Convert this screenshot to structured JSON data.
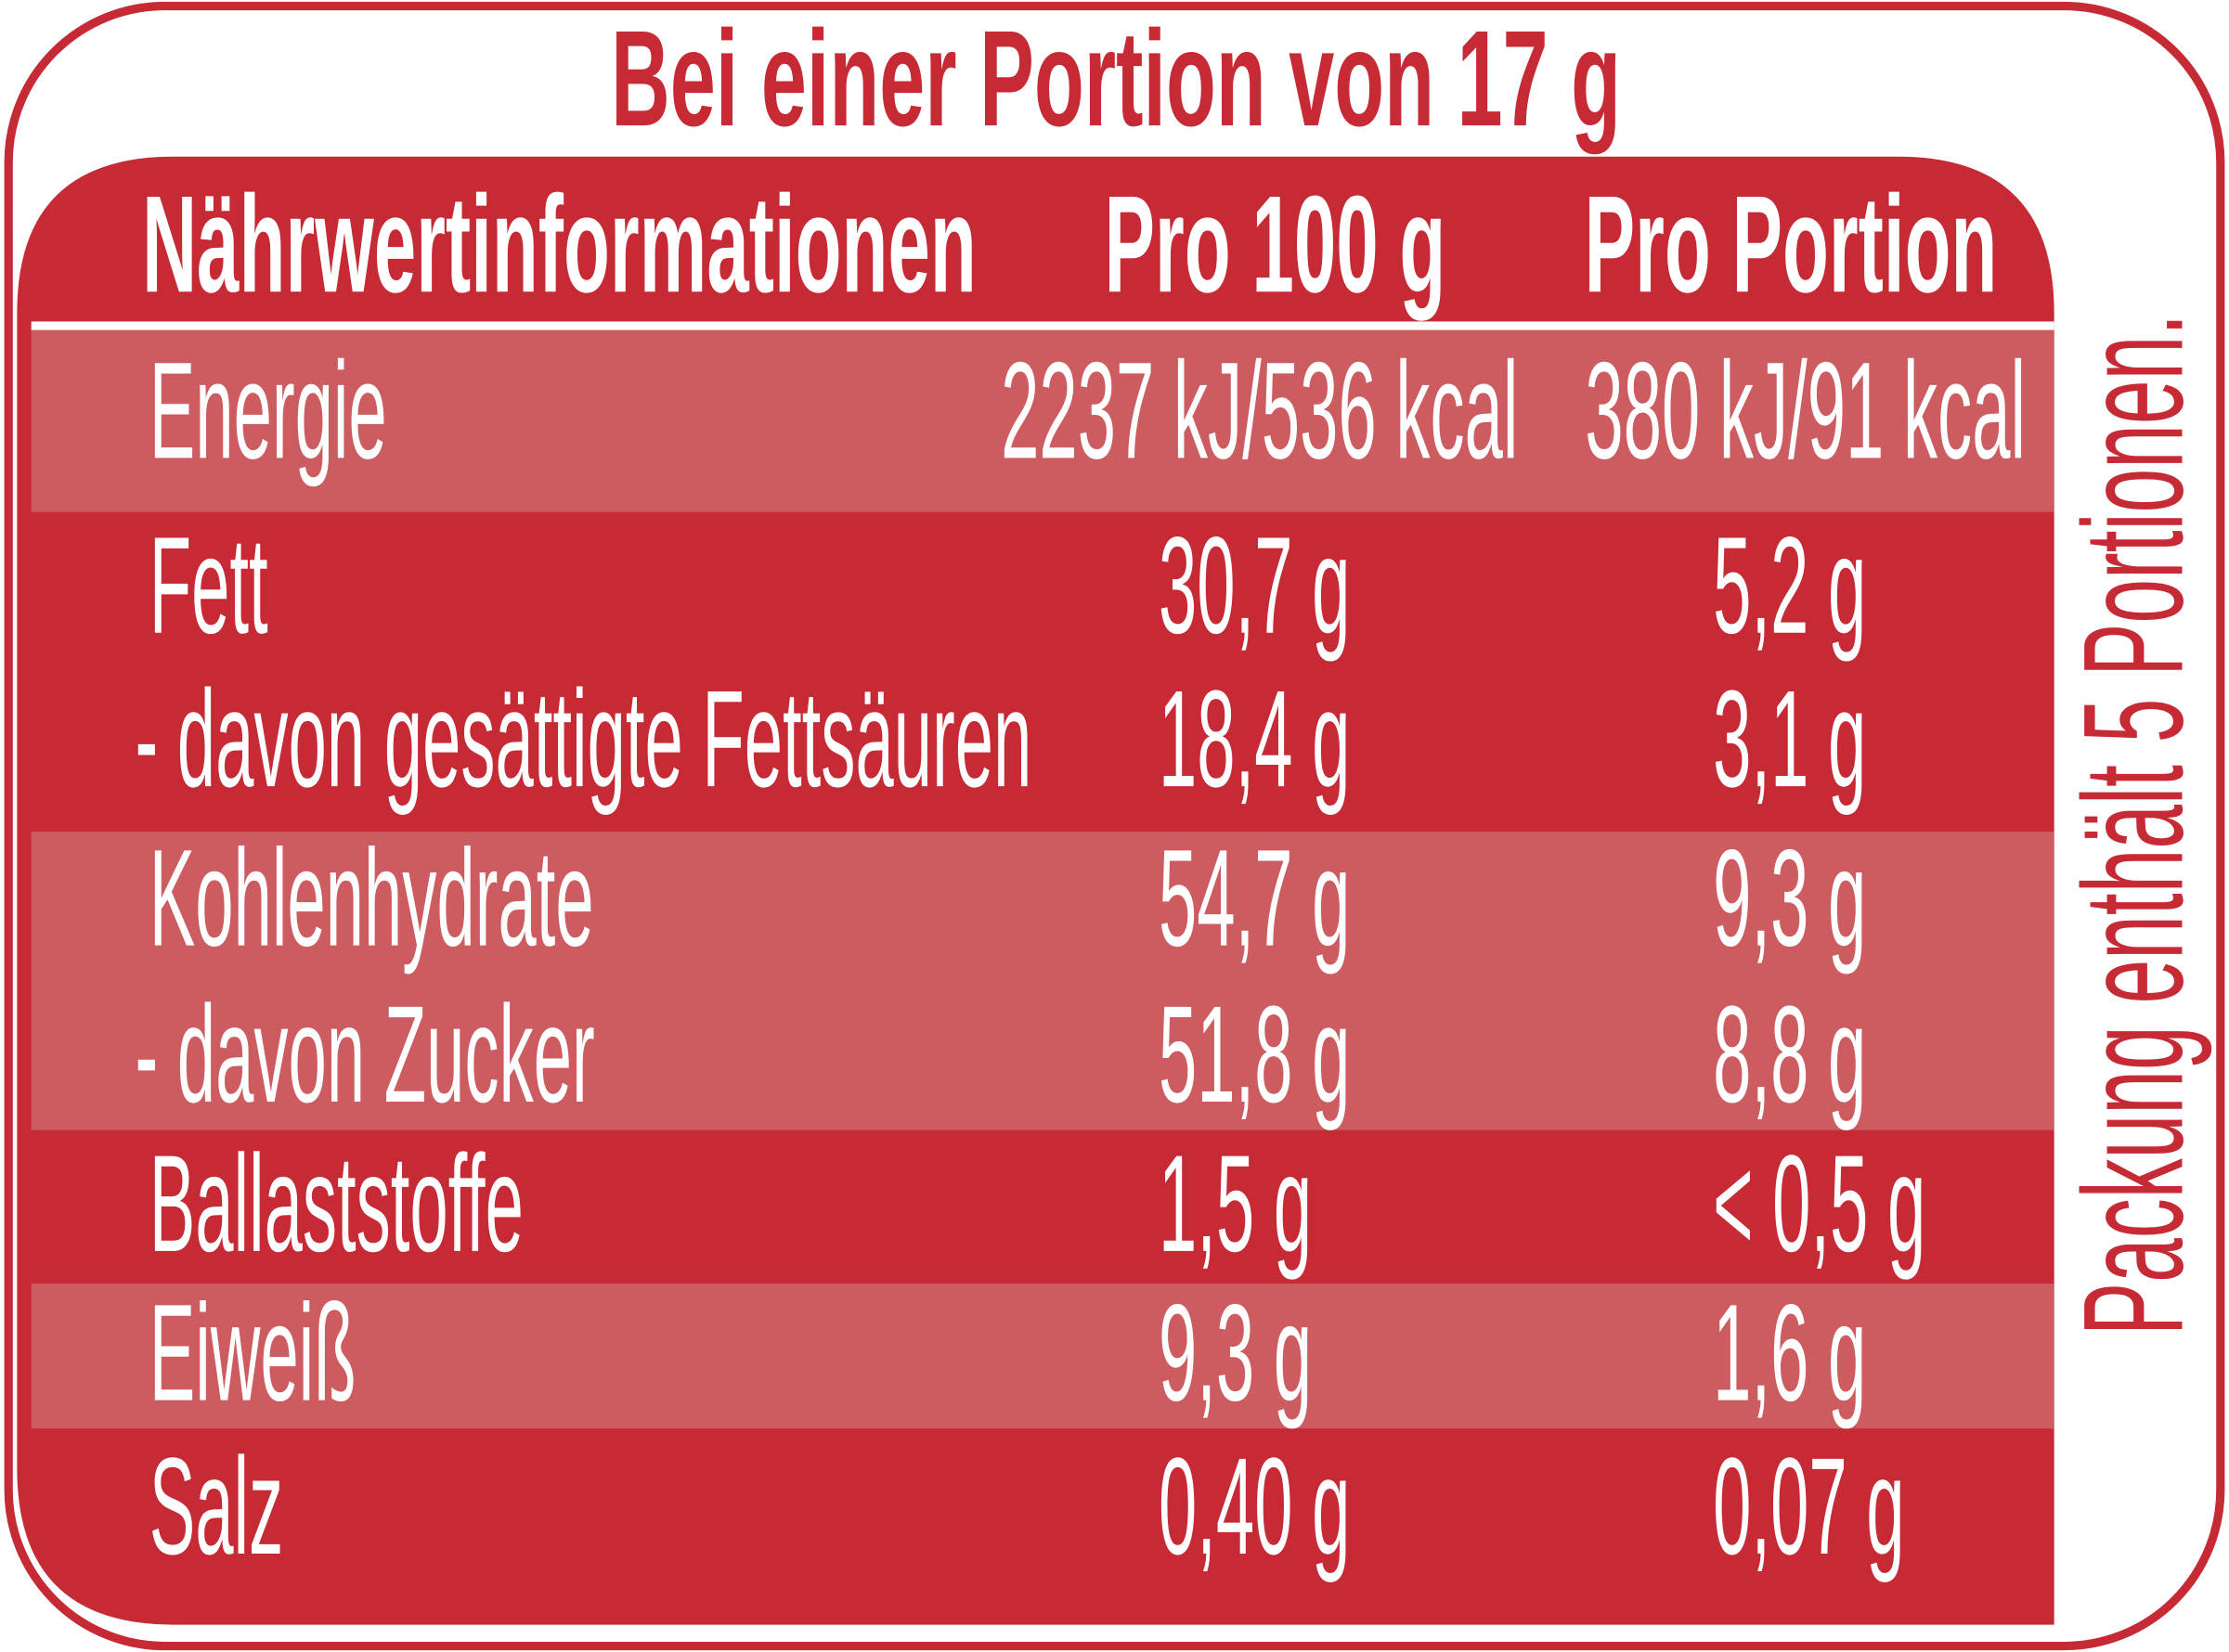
{
  "title": "Bei einer Portion von 17 g",
  "side_note": "Packung enthält 5 Portionen.",
  "table": {
    "header": [
      "Nährwertinformationen",
      "Pro 100 g",
      "Pro Portion"
    ],
    "rows": [
      [
        "Energie",
        "2237 kJ/536 kcal",
        "380 kJ/91 kcal"
      ],
      [
        "Fett",
        "30,7 g",
        "5,2 g"
      ],
      [
        "- davon gesättigte Fettsäuren",
        "18,4 g",
        "3,1 g"
      ],
      [
        "Kohlenhydrate",
        "54,7 g",
        "9,3 g"
      ],
      [
        "- davon Zucker",
        "51,8 g",
        "8,8 g"
      ],
      [
        "Ballaststoffe",
        "1,5 g",
        "< 0,5 g"
      ],
      [
        "Eiweiß",
        "9,3 g",
        "1,6 g"
      ],
      [
        "Salz",
        "0,40 g",
        "0,07 g"
      ]
    ]
  }
}
